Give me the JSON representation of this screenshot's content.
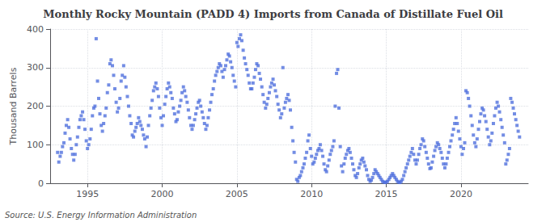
{
  "chart_data": {
    "type": "scatter",
    "title": "Monthly Rocky Mountain (PADD 4) Imports from Canada of Distillate Fuel Oil",
    "ylabel": "Thousand Barrels",
    "annotations": [
      "Source: U.S. Energy Information Administration"
    ],
    "marker": "square",
    "grid": true,
    "xlim": [
      1992.5,
      2024.5
    ],
    "xticks": [
      1995,
      2000,
      2005,
      2010,
      2015,
      2020
    ],
    "ylim": [
      0,
      400
    ],
    "yticks": [
      0,
      100,
      200,
      300,
      400
    ],
    "x": [
      1993.0,
      1993.08,
      1993.17,
      1993.25,
      1993.33,
      1993.42,
      1993.5,
      1993.58,
      1993.67,
      1993.75,
      1993.83,
      1993.92,
      1994.0,
      1994.08,
      1994.17,
      1994.25,
      1994.33,
      1994.42,
      1994.5,
      1994.58,
      1994.67,
      1994.75,
      1994.83,
      1994.92,
      1995.0,
      1995.08,
      1995.17,
      1995.25,
      1995.33,
      1995.42,
      1995.5,
      1995.58,
      1995.67,
      1995.75,
      1995.83,
      1995.92,
      1996.0,
      1996.08,
      1996.17,
      1996.25,
      1996.33,
      1996.42,
      1996.5,
      1996.58,
      1996.67,
      1996.75,
      1996.83,
      1996.92,
      1997.0,
      1997.08,
      1997.17,
      1997.25,
      1997.33,
      1997.42,
      1997.5,
      1997.58,
      1997.67,
      1997.75,
      1997.83,
      1997.92,
      1998.0,
      1998.08,
      1998.17,
      1998.25,
      1998.33,
      1998.42,
      1998.5,
      1998.58,
      1998.67,
      1998.75,
      1998.83,
      1998.92,
      1999.0,
      1999.08,
      1999.17,
      1999.25,
      1999.33,
      1999.42,
      1999.5,
      1999.58,
      1999.67,
      1999.75,
      1999.83,
      1999.92,
      2000.0,
      2000.08,
      2000.17,
      2000.25,
      2000.33,
      2000.42,
      2000.5,
      2000.58,
      2000.67,
      2000.75,
      2000.83,
      2000.92,
      2001.0,
      2001.08,
      2001.17,
      2001.25,
      2001.33,
      2001.42,
      2001.5,
      2001.58,
      2001.67,
      2001.75,
      2001.83,
      2001.92,
      2002.0,
      2002.08,
      2002.17,
      2002.25,
      2002.33,
      2002.42,
      2002.5,
      2002.58,
      2002.67,
      2002.75,
      2002.83,
      2002.92,
      2003.0,
      2003.08,
      2003.17,
      2003.25,
      2003.33,
      2003.42,
      2003.5,
      2003.58,
      2003.67,
      2003.75,
      2003.83,
      2003.92,
      2004.0,
      2004.08,
      2004.17,
      2004.25,
      2004.33,
      2004.42,
      2004.5,
      2004.58,
      2004.67,
      2004.75,
      2004.83,
      2004.92,
      2005.0,
      2005.08,
      2005.17,
      2005.25,
      2005.33,
      2005.42,
      2005.5,
      2005.58,
      2005.67,
      2005.75,
      2005.83,
      2005.92,
      2006.0,
      2006.08,
      2006.17,
      2006.25,
      2006.33,
      2006.42,
      2006.5,
      2006.58,
      2006.67,
      2006.75,
      2006.83,
      2006.92,
      2007.0,
      2007.08,
      2007.17,
      2007.25,
      2007.33,
      2007.42,
      2007.5,
      2007.58,
      2007.67,
      2007.75,
      2007.83,
      2007.92,
      2008.0,
      2008.08,
      2008.17,
      2008.25,
      2008.33,
      2008.42,
      2008.5,
      2008.58,
      2008.67,
      2008.75,
      2008.83,
      2008.92,
      2009.0,
      2009.08,
      2009.17,
      2009.25,
      2009.33,
      2009.42,
      2009.5,
      2009.58,
      2009.67,
      2009.75,
      2009.83,
      2009.92,
      2010.0,
      2010.08,
      2010.17,
      2010.25,
      2010.33,
      2010.42,
      2010.5,
      2010.58,
      2010.67,
      2010.75,
      2010.83,
      2010.92,
      2011.0,
      2011.08,
      2011.17,
      2011.25,
      2011.33,
      2011.42,
      2011.5,
      2011.58,
      2011.67,
      2011.75,
      2011.83,
      2011.92,
      2012.0,
      2012.08,
      2012.17,
      2012.25,
      2012.33,
      2012.42,
      2012.5,
      2012.58,
      2012.67,
      2012.75,
      2012.83,
      2012.92,
      2013.0,
      2013.08,
      2013.17,
      2013.25,
      2013.33,
      2013.42,
      2013.5,
      2013.58,
      2013.67,
      2013.75,
      2013.83,
      2013.92,
      2014.0,
      2014.08,
      2014.17,
      2014.25,
      2014.33,
      2014.42,
      2014.5,
      2014.58,
      2014.67,
      2014.75,
      2014.83,
      2014.92,
      2015.0,
      2015.08,
      2015.17,
      2015.25,
      2015.33,
      2015.42,
      2015.5,
      2015.58,
      2015.67,
      2015.75,
      2015.83,
      2015.92,
      2016.0,
      2016.08,
      2016.17,
      2016.25,
      2016.33,
      2016.42,
      2016.5,
      2016.58,
      2016.67,
      2016.75,
      2016.83,
      2016.92,
      2017.0,
      2017.08,
      2017.17,
      2017.25,
      2017.33,
      2017.42,
      2017.5,
      2017.58,
      2017.67,
      2017.75,
      2017.83,
      2017.92,
      2018.0,
      2018.08,
      2018.17,
      2018.25,
      2018.33,
      2018.42,
      2018.5,
      2018.58,
      2018.67,
      2018.75,
      2018.83,
      2018.92,
      2019.0,
      2019.08,
      2019.17,
      2019.25,
      2019.33,
      2019.42,
      2019.5,
      2019.58,
      2019.67,
      2019.75,
      2019.83,
      2019.92,
      2020.0,
      2020.08,
      2020.17,
      2020.25,
      2020.33,
      2020.42,
      2020.5,
      2020.58,
      2020.67,
      2020.75,
      2020.83,
      2020.92,
      2021.0,
      2021.08,
      2021.17,
      2021.25,
      2021.33,
      2021.42,
      2021.5,
      2021.58,
      2021.67,
      2021.75,
      2021.83,
      2021.92,
      2022.0,
      2022.08,
      2022.17,
      2022.25,
      2022.33,
      2022.42,
      2022.5,
      2022.58,
      2022.67,
      2022.75,
      2022.83,
      2022.92,
      2023.0,
      2023.08,
      2023.17,
      2023.25,
      2023.33,
      2023.42,
      2023.5,
      2023.58,
      2023.67,
      2023.75,
      2023.83,
      2023.92
    ],
    "values": [
      80,
      55,
      70,
      80,
      95,
      105,
      130,
      150,
      165,
      145,
      115,
      90,
      75,
      60,
      75,
      100,
      120,
      145,
      165,
      175,
      185,
      165,
      140,
      110,
      90,
      100,
      115,
      140,
      175,
      195,
      200,
      375,
      265,
      220,
      180,
      150,
      135,
      155,
      175,
      195,
      235,
      255,
      310,
      320,
      305,
      280,
      245,
      210,
      185,
      195,
      220,
      265,
      280,
      305,
      275,
      250,
      225,
      200,
      175,
      155,
      125,
      120,
      135,
      145,
      155,
      170,
      160,
      150,
      140,
      125,
      115,
      95,
      120,
      150,
      175,
      195,
      215,
      240,
      250,
      260,
      245,
      225,
      195,
      170,
      150,
      175,
      205,
      225,
      245,
      260,
      250,
      235,
      220,
      195,
      180,
      160,
      165,
      185,
      200,
      215,
      235,
      250,
      240,
      225,
      210,
      190,
      170,
      150,
      140,
      150,
      165,
      180,
      195,
      210,
      215,
      200,
      185,
      170,
      155,
      140,
      150,
      170,
      190,
      210,
      230,
      245,
      265,
      280,
      290,
      300,
      310,
      305,
      290,
      275,
      295,
      305,
      320,
      335,
      330,
      315,
      300,
      280,
      265,
      250,
      365,
      355,
      375,
      385,
      370,
      345,
      325,
      310,
      295,
      280,
      260,
      245,
      245,
      260,
      275,
      295,
      310,
      305,
      285,
      270,
      250,
      230,
      210,
      195,
      205,
      220,
      235,
      250,
      260,
      270,
      255,
      240,
      225,
      205,
      190,
      170,
      180,
      300,
      195,
      210,
      220,
      230,
      215,
      190,
      145,
      110,
      80,
      55,
      10,
      5,
      15,
      20,
      30,
      40,
      50,
      65,
      80,
      110,
      125,
      90,
      70,
      50,
      55,
      65,
      75,
      85,
      90,
      100,
      85,
      70,
      50,
      35,
      30,
      45,
      60,
      75,
      85,
      95,
      110,
      200,
      285,
      295,
      195,
      95,
      45,
      30,
      50,
      65,
      75,
      85,
      90,
      80,
      65,
      50,
      35,
      20,
      15,
      25,
      40,
      50,
      60,
      65,
      55,
      45,
      35,
      20,
      10,
      5,
      8,
      15,
      25,
      35,
      30,
      25,
      20,
      15,
      10,
      5,
      3,
      2,
      3,
      5,
      10,
      15,
      20,
      25,
      20,
      15,
      10,
      5,
      3,
      2,
      5,
      10,
      20,
      30,
      40,
      50,
      60,
      70,
      80,
      90,
      75,
      60,
      50,
      60,
      75,
      90,
      100,
      115,
      110,
      95,
      80,
      65,
      50,
      38,
      40,
      55,
      70,
      85,
      95,
      105,
      100,
      90,
      80,
      65,
      50,
      40,
      50,
      65,
      80,
      95,
      110,
      125,
      140,
      155,
      170,
      155,
      135,
      115,
      95,
      75,
      90,
      105,
      240,
      235,
      220,
      200,
      175,
      150,
      125,
      105,
      95,
      115,
      140,
      160,
      180,
      195,
      190,
      175,
      160,
      140,
      120,
      100,
      110,
      130,
      155,
      175,
      195,
      210,
      200,
      185,
      165,
      145,
      125,
      105,
      50,
      60,
      75,
      90,
      220,
      210,
      195,
      180,
      165,
      150,
      135,
      120
    ]
  }
}
